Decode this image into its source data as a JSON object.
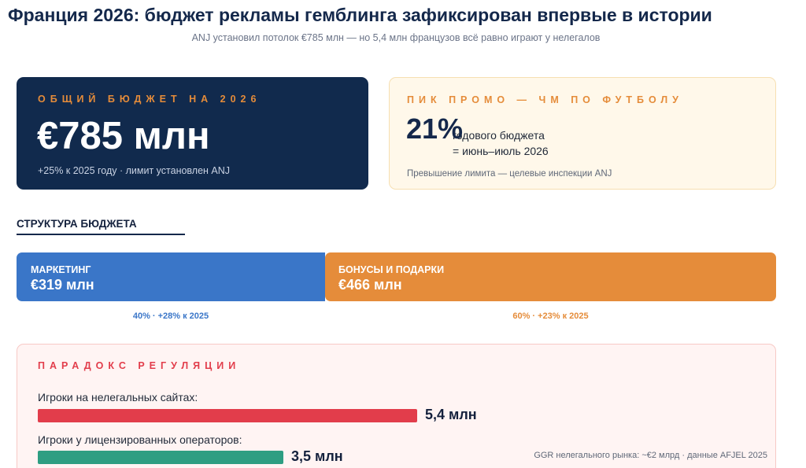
{
  "header": {
    "title": "Франция 2026: бюджет рекламы гемблинга зафиксирован впервые в истории",
    "subtitle": "ANJ установил потолок €785 млн — но 5,4 млн французов всё равно играют у нелегалов"
  },
  "total_card": {
    "label": "ОБЩИЙ БЮДЖЕТ НА 2026",
    "value": "€785 млн",
    "note": "+25% к 2025 году · лимит установлен ANJ"
  },
  "peak_card": {
    "label": "ПИК ПРОМО — ЧМ ПО ФУТБОЛУ",
    "percent": "21%",
    "desc_line1": "годового бюджета",
    "desc_line2": "= июнь–июль 2026",
    "note": "Превышение лимита — целевые инспекции ANJ"
  },
  "structure": {
    "title": "СТРУКТУРА БЮДЖЕТА",
    "segments": [
      {
        "label": "МАРКЕТИНГ",
        "value": "€319 млн",
        "caption": "40% · +28% к 2025",
        "share": 0.4,
        "color": "#3a76c8"
      },
      {
        "label": "БОНУСЫ И ПОДАРКИ",
        "value": "€466 млн",
        "caption": "60% · +23% к 2025",
        "share": 0.6,
        "color": "#e58c3a"
      }
    ]
  },
  "paradox": {
    "label": "ПАРАДОКС РЕГУЛЯЦИИ",
    "rows": [
      {
        "label": "Игроки на нелегальных сайтах:",
        "value": "5,4 млн",
        "amount": 5.4,
        "color": "#e23d4b"
      },
      {
        "label": "Игроки у лицензированных операторов:",
        "value": "3,5 млн",
        "amount": 3.5,
        "color": "#2e9e82"
      }
    ],
    "footnote": "GGR нелегального рынка: ~€2 млрд · данные AFJEL 2025"
  }
}
